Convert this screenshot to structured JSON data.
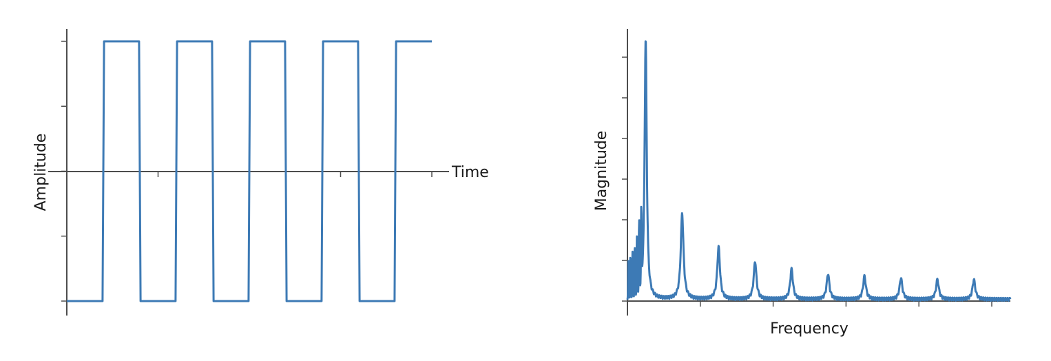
{
  "chart_data": [
    {
      "type": "line",
      "xlabel": "Time",
      "ylabel": "Amplitude",
      "x_ticks_count": 5,
      "y_ticks_count": 5,
      "series": [
        {
          "x": [
            0,
            0.98,
            1.02,
            1.98,
            2.02,
            2.98,
            3.02,
            3.98,
            4.02,
            4.98,
            5.02,
            5.98,
            6.02,
            6.98,
            7.02,
            7.98,
            8.02,
            8.98,
            9.02,
            10.0
          ],
          "y": [
            -1,
            -1,
            1,
            1,
            -1,
            -1,
            1,
            1,
            -1,
            -1,
            1,
            1,
            -1,
            -1,
            1,
            1,
            -1,
            -1,
            1,
            1
          ]
        }
      ],
      "color": "#3d7ab5"
    },
    {
      "type": "line",
      "xlabel": "Frequency",
      "ylabel": "Magnitude",
      "x_ticks_count": 6,
      "y_ticks_count": 7,
      "peaks": [
        {
          "x": 0.05,
          "y": 1.0
        },
        {
          "x": 0.15,
          "y": 0.33
        },
        {
          "x": 0.25,
          "y": 0.2
        },
        {
          "x": 0.35,
          "y": 0.145
        },
        {
          "x": 0.45,
          "y": 0.115
        },
        {
          "x": 0.55,
          "y": 0.097
        },
        {
          "x": 0.65,
          "y": 0.088
        },
        {
          "x": 0.75,
          "y": 0.081
        },
        {
          "x": 0.85,
          "y": 0.075
        },
        {
          "x": 0.95,
          "y": 0.075
        }
      ],
      "low_freq_spikes": [
        {
          "x": 0.003,
          "y": 0.14
        },
        {
          "x": 0.008,
          "y": 0.16
        },
        {
          "x": 0.014,
          "y": 0.17
        },
        {
          "x": 0.02,
          "y": 0.19
        },
        {
          "x": 0.026,
          "y": 0.22
        },
        {
          "x": 0.032,
          "y": 0.27
        },
        {
          "x": 0.038,
          "y": 0.285
        }
      ],
      "xlim": [
        0,
        1.05
      ],
      "ylim": [
        0,
        1.0
      ],
      "color": "#3d7ab5"
    }
  ]
}
